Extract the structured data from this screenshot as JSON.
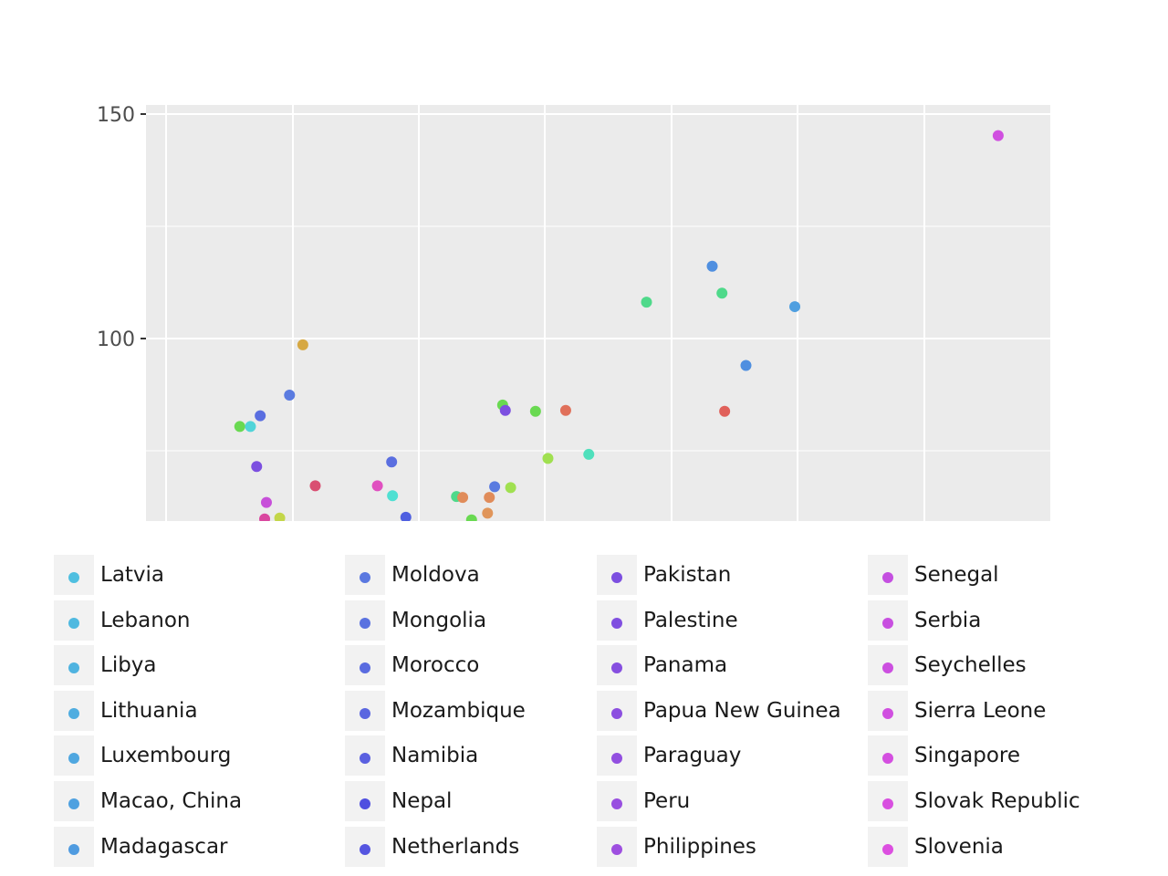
{
  "chart_data": {
    "type": "scatter",
    "title": "",
    "xlabel": "",
    "ylabel": "",
    "y_ticks": [
      "100",
      "150"
    ],
    "ylim": [
      60,
      152
    ],
    "xlim": [
      0,
      100
    ],
    "grid": true,
    "legend_position": "bottom",
    "points": [
      {
        "x": 8.3,
        "y": 80.4,
        "color": "#69d951"
      },
      {
        "x": 9.5,
        "y": 80.4,
        "color": "#50d4d9"
      },
      {
        "x": 10.6,
        "y": 82.8,
        "color": "#5a6ee0"
      },
      {
        "x": 10.2,
        "y": 71.5,
        "color": "#7c4fe0"
      },
      {
        "x": 11.3,
        "y": 63.5,
        "color": "#c74fd9"
      },
      {
        "x": 13.9,
        "y": 87.4,
        "color": "#5a7be0"
      },
      {
        "x": 15.4,
        "y": 98.6,
        "color": "#d6a843"
      },
      {
        "x": 16.8,
        "y": 67.2,
        "color": "#d94f72"
      },
      {
        "x": 12.8,
        "y": 60.0,
        "color": "#c3d649"
      },
      {
        "x": 11.1,
        "y": 59.8,
        "color": "#d9479f"
      },
      {
        "x": 23.8,
        "y": 67.2,
        "color": "#e050c0"
      },
      {
        "x": 25.4,
        "y": 72.5,
        "color": "#5a6ee0"
      },
      {
        "x": 25.5,
        "y": 65.0,
        "color": "#4fe0d2"
      },
      {
        "x": 27.0,
        "y": 60.2,
        "color": "#4f5fe0"
      },
      {
        "x": 32.7,
        "y": 64.8,
        "color": "#4fd98a"
      },
      {
        "x": 33.4,
        "y": 64.6,
        "color": "#e08c5a"
      },
      {
        "x": 34.4,
        "y": 59.6,
        "color": "#69d951"
      },
      {
        "x": 36.2,
        "y": 61.1,
        "color": "#e0955a"
      },
      {
        "x": 36.4,
        "y": 64.6,
        "color": "#e08c5a"
      },
      {
        "x": 37.0,
        "y": 67.0,
        "color": "#5a7be0"
      },
      {
        "x": 37.9,
        "y": 85.2,
        "color": "#69d951"
      },
      {
        "x": 38.2,
        "y": 84.0,
        "color": "#7c4fe0"
      },
      {
        "x": 38.8,
        "y": 66.8,
        "color": "#a0e050"
      },
      {
        "x": 41.6,
        "y": 83.8,
        "color": "#69d951"
      },
      {
        "x": 43.0,
        "y": 73.3,
        "color": "#a0e050"
      },
      {
        "x": 45.0,
        "y": 84.0,
        "color": "#e0705a"
      },
      {
        "x": 47.6,
        "y": 74.2,
        "color": "#4fe0bc"
      },
      {
        "x": 54.1,
        "y": 108.1,
        "color": "#4fd98a"
      },
      {
        "x": 61.5,
        "y": 116.1,
        "color": "#4f8fe0"
      },
      {
        "x": 62.6,
        "y": 110.1,
        "color": "#4fd98a"
      },
      {
        "x": 62.9,
        "y": 83.8,
        "color": "#e0605a"
      },
      {
        "x": 65.3,
        "y": 94.0,
        "color": "#4f8fe0"
      },
      {
        "x": 70.8,
        "y": 107.1,
        "color": "#4f9fe0"
      },
      {
        "x": 93.7,
        "y": 145.2,
        "color": "#d04fe0"
      }
    ]
  },
  "legend": {
    "columns": [
      {
        "items": [
          {
            "label": "Latvia",
            "color": "#4fbfe0"
          },
          {
            "label": "Lebanon",
            "color": "#4fb9e0"
          },
          {
            "label": "Libya",
            "color": "#4fb3e0"
          },
          {
            "label": "Lithuania",
            "color": "#4fade0"
          },
          {
            "label": "Luxembourg",
            "color": "#4fa7e0"
          },
          {
            "label": "Macao, China",
            "color": "#4fa1e0"
          },
          {
            "label": "Madagascar",
            "color": "#4f9be0"
          }
        ]
      },
      {
        "items": [
          {
            "label": "Moldova",
            "color": "#5a78e0"
          },
          {
            "label": "Mongolia",
            "color": "#5a72e0"
          },
          {
            "label": "Morocco",
            "color": "#5a6ce0"
          },
          {
            "label": "Mozambique",
            "color": "#5a66e0"
          },
          {
            "label": "Namibia",
            "color": "#5a60e0"
          },
          {
            "label": "Nepal",
            "color": "#4f4fe0"
          },
          {
            "label": "Netherlands",
            "color": "#5555e0"
          }
        ]
      },
      {
        "items": [
          {
            "label": "Pakistan",
            "color": "#7c4fe0"
          },
          {
            "label": "Palestine",
            "color": "#804fe0"
          },
          {
            "label": "Panama",
            "color": "#864fe0"
          },
          {
            "label": "Papua New Guinea",
            "color": "#8c4fe0"
          },
          {
            "label": "Paraguay",
            "color": "#924fe0"
          },
          {
            "label": "Peru",
            "color": "#984fe0"
          },
          {
            "label": "Philippines",
            "color": "#9e4fe0"
          }
        ]
      },
      {
        "items": [
          {
            "label": "Senegal",
            "color": "#c44fe0"
          },
          {
            "label": "Serbia",
            "color": "#c84fe0"
          },
          {
            "label": "Seychelles",
            "color": "#cc4fe0"
          },
          {
            "label": "Sierra Leone",
            "color": "#d04fe0"
          },
          {
            "label": "Singapore",
            "color": "#d44fe0"
          },
          {
            "label": "Slovak Republic",
            "color": "#d84fe0"
          },
          {
            "label": "Slovenia",
            "color": "#dc4fe0"
          }
        ]
      }
    ]
  }
}
